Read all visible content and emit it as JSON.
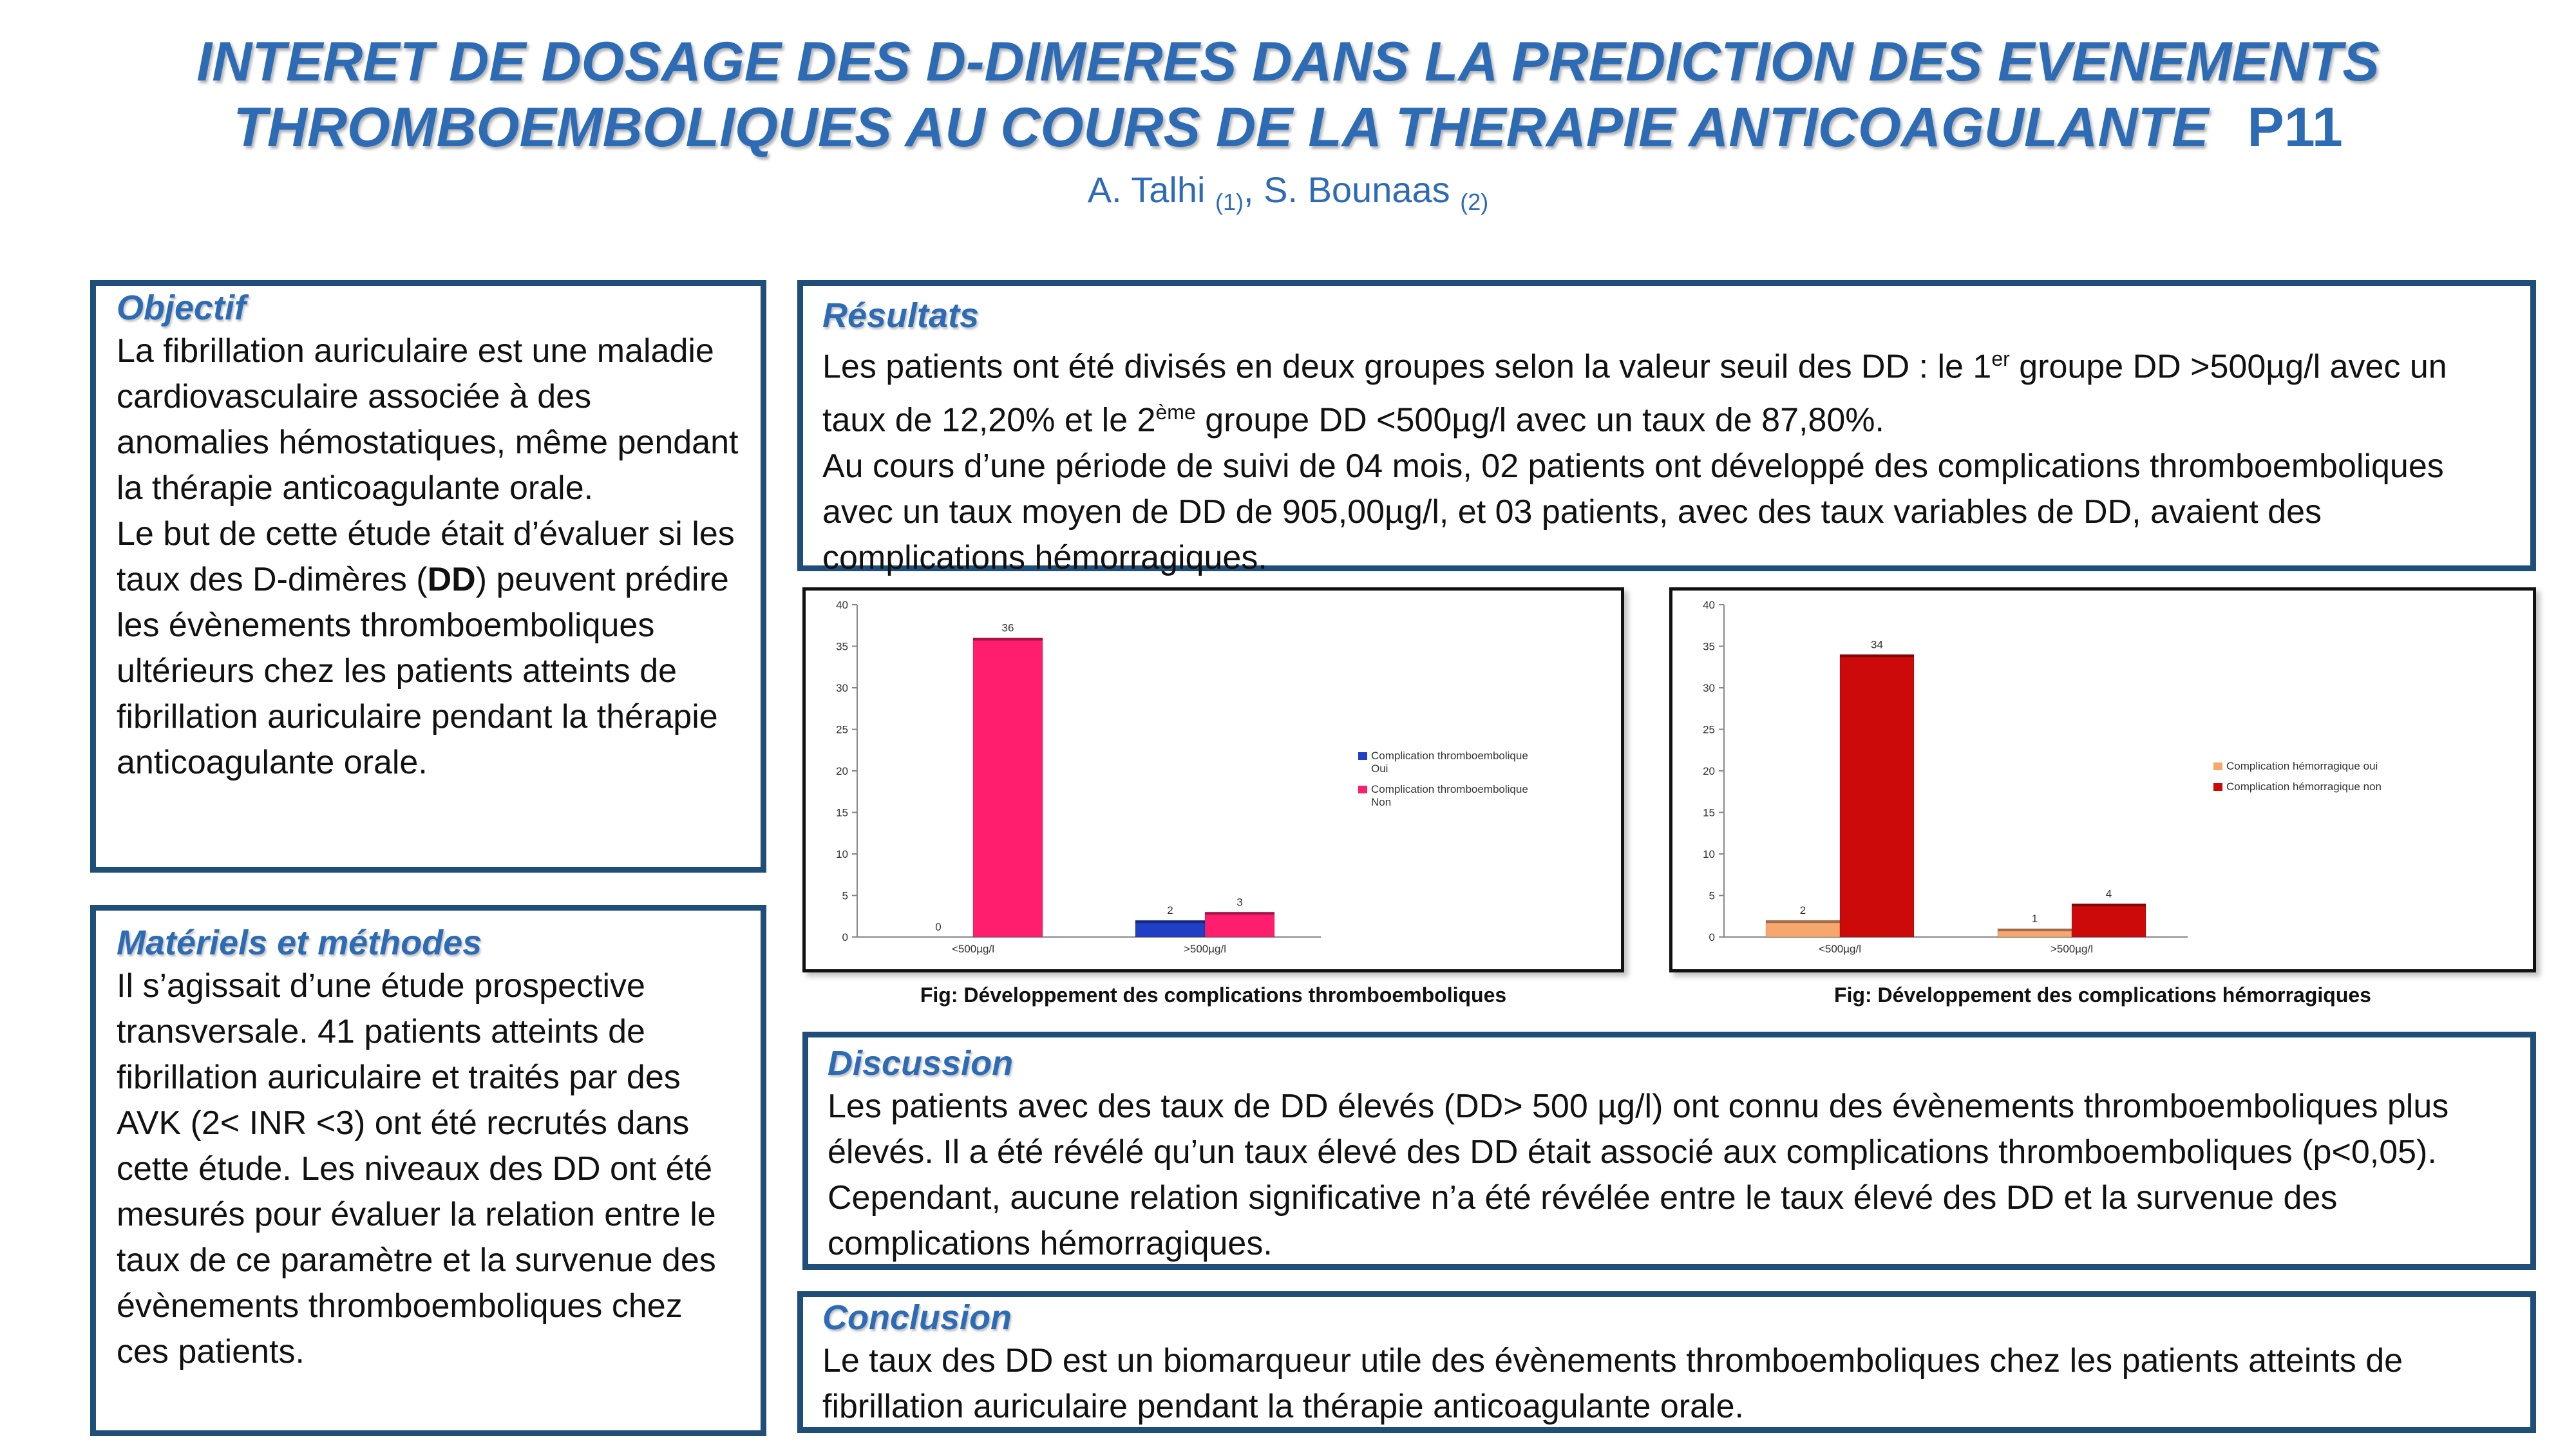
{
  "title": {
    "line1": "INTERET DE DOSAGE DES D-DIMERES DANS LA PREDICTION DES EVENEMENTS",
    "line2": "THROMBOEMBOLIQUES AU COURS DE LA THERAPIE ANTICOAGULANTE",
    "code": "P11"
  },
  "authors": {
    "a1_name": "A. Talhi ",
    "a1_aff": "(1)",
    "sep": ", ",
    "a2_name": "S. Bounaas ",
    "a2_aff": "(2)"
  },
  "objectif": {
    "heading": "Objectif",
    "p1": "La fibrillation auriculaire est une maladie cardiovasculaire associée à des anomalies hémostatiques, même pendant la thérapie anticoagulante orale.",
    "p2_before": "Le but de cette étude était d’évaluer si les taux des D-dimères (",
    "p2_bold": "DD",
    "p2_after": ") peuvent prédire les évènements thromboemboliques ultérieurs chez les patients atteints de fibrillation auriculaire pendant la thérapie anticoagulante orale."
  },
  "methodes": {
    "heading": "Matériels et méthodes",
    "p1": "Il s’agissait d’une étude prospective transversale. 41 patients atteints de fibrillation auriculaire et traités par des AVK (2< INR <3) ont été recrutés dans cette étude. Les niveaux des DD ont été mesurés pour évaluer la relation entre le taux de ce paramètre et la survenue des évènements thromboemboliques chez ces patients."
  },
  "resultats": {
    "heading": "Résultats",
    "t1": "Les patients ont été divisés en deux groupes selon la valeur seuil des DD : le 1",
    "sup1": "er",
    "t2": " groupe DD >500µg/l avec un taux de 12,20% et le 2",
    "sup2": "ème",
    "t3": " groupe DD <500µg/l avec un taux de 87,80%.",
    "p2": "Au cours d’une période de suivi de 04 mois, 02 patients ont développé des complications thromboemboliques avec un taux moyen de DD de 905,00µg/l, et 03 patients, avec des taux variables de DD, avaient des complications hémorragiques."
  },
  "discussion": {
    "heading": "Discussion",
    "p1": "Les patients avec des taux de DD élevés (DD> 500 µg/l) ont connu des évènements thromboemboliques plus élevés. Il a été révélé qu’un taux élevé des DD était associé aux complications thromboemboliques (p<0,05). Cependant, aucune relation significative n’a été révélée entre le taux élevé des DD et la survenue des complications hémorragiques."
  },
  "conclusion": {
    "heading": "Conclusion",
    "p1": "Le taux des DD est un biomarqueur utile des évènements thromboemboliques chez les patients atteints de fibrillation auriculaire pendant la thérapie anticoagulante orale."
  },
  "chart_data": [
    {
      "type": "bar",
      "caption": "Fig: Développement des complications thromboemboliques",
      "categories": [
        "<500µg/l",
        ">500µg/l"
      ],
      "series": [
        {
          "name": "Complication thromboembolique Oui",
          "legend_line1": "Complication thromboembolique",
          "legend_line2": "Oui",
          "color": "#1f3fc4",
          "values": [
            0,
            2
          ]
        },
        {
          "name": "Complication thromboembolique Non",
          "legend_line1": "Complication thromboembolique",
          "legend_line2": "Non",
          "color": "#ff1e6e",
          "values": [
            36,
            3
          ]
        }
      ],
      "ylim": [
        0,
        40
      ],
      "yticks": [
        0,
        5,
        10,
        15,
        20,
        25,
        30,
        35,
        40
      ],
      "legend_position": "right"
    },
    {
      "type": "bar",
      "caption": "Fig: Développement des complications hémorragiques",
      "categories": [
        "<500µg/l",
        ">500µg/l"
      ],
      "series": [
        {
          "name": "Complication hémorragique oui",
          "legend_line1": "Complication hémorragique oui",
          "legend_line2": "",
          "color": "#f7a66e",
          "values": [
            2,
            1
          ]
        },
        {
          "name": "Complication hémorragique non",
          "legend_line1": "Complication hémorragique non",
          "legend_line2": "",
          "color": "#cc0a0a",
          "values": [
            34,
            4
          ]
        }
      ],
      "ylim": [
        0,
        40
      ],
      "yticks": [
        0,
        5,
        10,
        15,
        20,
        25,
        30,
        35,
        40
      ],
      "legend_position": "right"
    }
  ]
}
